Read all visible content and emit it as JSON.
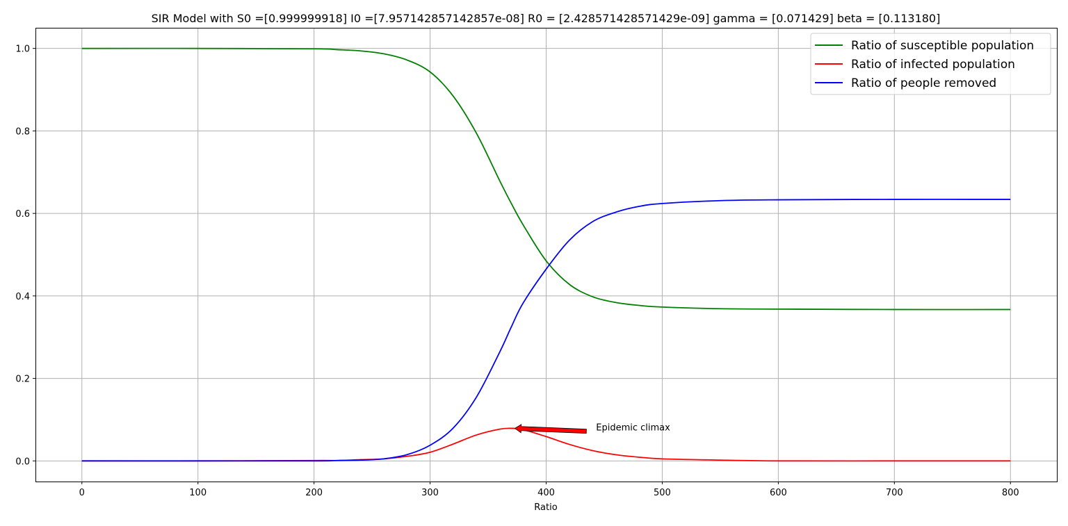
{
  "chart_data": {
    "type": "line",
    "title": "SIR Model with S0 =[0.999999918] I0 =[7.957142857142857e-08] R0 = [2.428571428571429e-09] gamma = [0.071429] beta = [0.113180]",
    "xlabel": "Ratio",
    "ylabel": "",
    "xlim": [
      -40,
      840
    ],
    "ylim": [
      -0.05,
      1.05
    ],
    "xticks": [
      0,
      100,
      200,
      300,
      400,
      500,
      600,
      700,
      800
    ],
    "yticks": [
      0.0,
      0.2,
      0.4,
      0.6,
      0.8,
      1.0
    ],
    "ytick_labels": [
      "0.0",
      "0.2",
      "0.4",
      "0.6",
      "0.8",
      "1.0"
    ],
    "grid": true,
    "legend_position": "top-right",
    "x": [
      0,
      100,
      200,
      220,
      240,
      260,
      280,
      300,
      320,
      340,
      360,
      370,
      380,
      400,
      420,
      440,
      460,
      480,
      500,
      550,
      600,
      700,
      800
    ],
    "series": [
      {
        "name": "Ratio of susceptible population",
        "color": "#008000",
        "values": [
          1.0,
          1.0,
          0.999,
          0.997,
          0.994,
          0.987,
          0.972,
          0.943,
          0.884,
          0.794,
          0.679,
          0.624,
          0.573,
          0.485,
          0.428,
          0.398,
          0.384,
          0.377,
          0.373,
          0.369,
          0.368,
          0.367,
          0.367
        ]
      },
      {
        "name": "Ratio of infected population",
        "color": "#ff0000",
        "values": [
          0.0,
          0.0,
          0.001,
          0.001,
          0.003,
          0.005,
          0.011,
          0.021,
          0.041,
          0.063,
          0.077,
          0.079,
          0.076,
          0.059,
          0.04,
          0.025,
          0.015,
          0.009,
          0.005,
          0.002,
          0.0,
          0.0,
          0.0
        ]
      },
      {
        "name": "Ratio of people removed",
        "color": "#0000ff",
        "values": [
          0.0,
          0.0,
          0.0,
          0.001,
          0.002,
          0.005,
          0.015,
          0.038,
          0.08,
          0.155,
          0.264,
          0.325,
          0.382,
          0.465,
          0.535,
          0.58,
          0.603,
          0.617,
          0.624,
          0.631,
          0.633,
          0.634,
          0.634
        ]
      }
    ],
    "annotations": [
      {
        "text": "Epidemic climax",
        "x": 373,
        "y": 0.079,
        "text_x": 443,
        "text_y": 0.082
      }
    ]
  }
}
